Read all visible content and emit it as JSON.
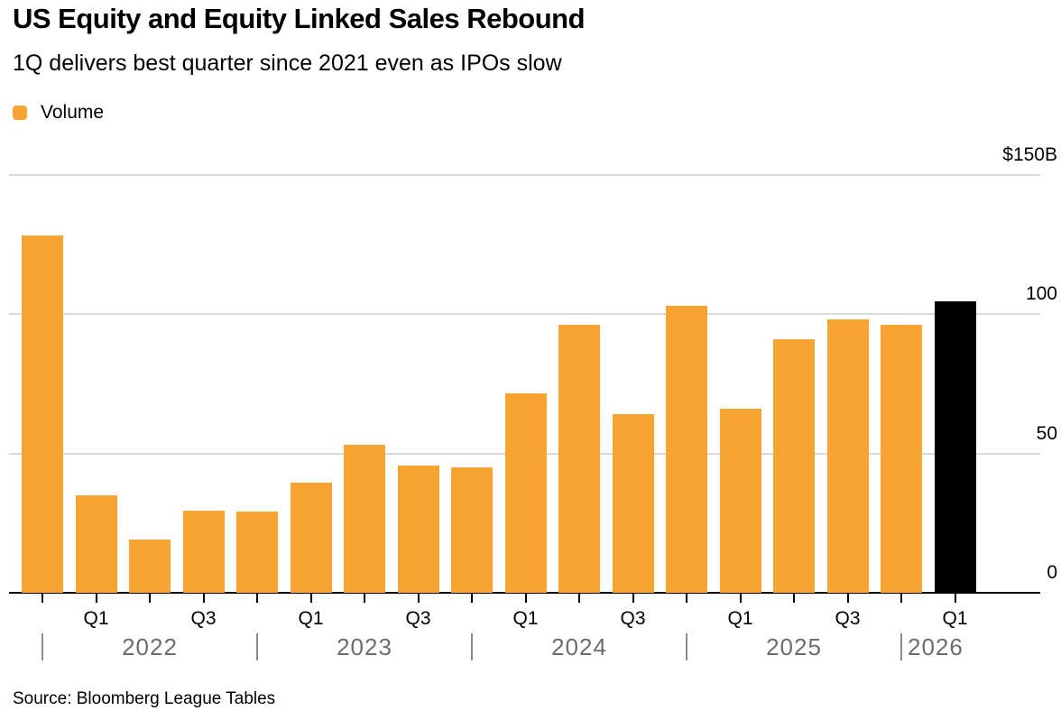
{
  "header": {
    "title": "US Equity and Equity Linked Sales Rebound",
    "subtitle": "1Q delivers best quarter since 2021 even as IPOs slow"
  },
  "legend": {
    "items": [
      {
        "label": "Volume",
        "color": "#F8A432"
      }
    ]
  },
  "footer": {
    "source": "Source: Bloomberg League Tables"
  },
  "colors": {
    "bar_orange": "#F8A432",
    "bar_black": "#000000",
    "gridline_gray": "#d9d9d9",
    "year_text_gray": "#6d6d6d",
    "separator_gray": "#8c8c8c"
  },
  "chart_data": {
    "type": "bar",
    "title": "US Equity and Equity Linked Sales Rebound",
    "subtitle": "1Q delivers best quarter since 2021 even as IPOs slow",
    "series_name": "Volume",
    "value_unit": "USD billions",
    "ylim": [
      0,
      150
    ],
    "grid": "horizontal gridlines at 50, 100, 150; black axis line at 0",
    "legend_position": "top-left",
    "yticks": [
      {
        "value": 150,
        "label": "$150B"
      },
      {
        "value": 100,
        "label": "100"
      },
      {
        "value": 50,
        "label": "50"
      },
      {
        "value": 0,
        "label": "0"
      }
    ],
    "points": [
      {
        "period": "Q4 2021",
        "axis_label": "",
        "value": 128,
        "color": "#F8A432"
      },
      {
        "period": "Q1 2022",
        "axis_label": "Q1",
        "value": 35,
        "color": "#F8A432"
      },
      {
        "period": "Q2 2022",
        "axis_label": "",
        "value": 19,
        "color": "#F8A432"
      },
      {
        "period": "Q3 2022",
        "axis_label": "Q3",
        "value": 29.5,
        "color": "#F8A432"
      },
      {
        "period": "Q4 2022",
        "axis_label": "",
        "value": 29,
        "color": "#F8A432"
      },
      {
        "period": "Q1 2023",
        "axis_label": "Q1",
        "value": 39.5,
        "color": "#F8A432"
      },
      {
        "period": "Q2 2023",
        "axis_label": "",
        "value": 53,
        "color": "#F8A432"
      },
      {
        "period": "Q3 2023",
        "axis_label": "Q3",
        "value": 45.5,
        "color": "#F8A432"
      },
      {
        "period": "Q4 2023",
        "axis_label": "",
        "value": 45,
        "color": "#F8A432"
      },
      {
        "period": "Q1 2024",
        "axis_label": "Q1",
        "value": 71.5,
        "color": "#F8A432"
      },
      {
        "period": "Q2 2024",
        "axis_label": "",
        "value": 96,
        "color": "#F8A432"
      },
      {
        "period": "Q3 2024",
        "axis_label": "Q3",
        "value": 64,
        "color": "#F8A432"
      },
      {
        "period": "Q4 2024",
        "axis_label": "",
        "value": 103,
        "color": "#F8A432"
      },
      {
        "period": "Q1 2025",
        "axis_label": "Q1",
        "value": 66,
        "color": "#F8A432"
      },
      {
        "period": "Q2 2025",
        "axis_label": "",
        "value": 91,
        "color": "#F8A432"
      },
      {
        "period": "Q3 2025",
        "axis_label": "Q3",
        "value": 98,
        "color": "#F8A432"
      },
      {
        "period": "Q4 2025",
        "axis_label": "",
        "value": 96,
        "color": "#F8A432"
      },
      {
        "period": "Q1 2026",
        "axis_label": "Q1",
        "value": 104.5,
        "color": "#000000"
      }
    ],
    "year_groups": [
      {
        "label": "2022",
        "separator_bar_index": 0,
        "align": "center"
      },
      {
        "label": "2023",
        "separator_bar_index": 4,
        "align": "center"
      },
      {
        "label": "2024",
        "separator_bar_index": 8,
        "align": "center"
      },
      {
        "label": "2025",
        "separator_bar_index": 12,
        "align": "center"
      },
      {
        "label": "2026",
        "separator_bar_index": 16,
        "align": "left"
      }
    ]
  }
}
